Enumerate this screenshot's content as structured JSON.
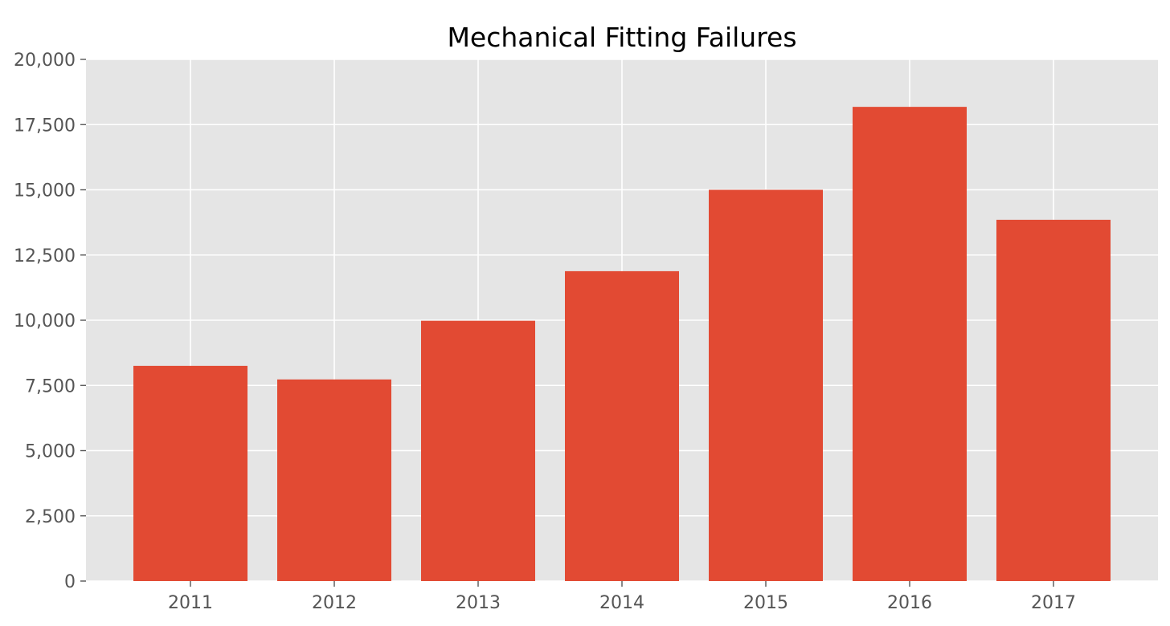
{
  "chart_data": {
    "type": "bar",
    "title": "Mechanical Fitting Failures",
    "xlabel": "",
    "ylabel": "",
    "categories": [
      "2011",
      "2012",
      "2013",
      "2014",
      "2015",
      "2016",
      "2017"
    ],
    "values": [
      8250,
      7730,
      9980,
      11880,
      15000,
      18180,
      13850
    ],
    "ylim": [
      0,
      20000
    ],
    "yticks": [
      0,
      2500,
      5000,
      7500,
      10000,
      12500,
      15000,
      17500,
      20000
    ],
    "ytick_labels": [
      "0",
      "2,500",
      "5,000",
      "7,500",
      "10,000",
      "12,500",
      "15,000",
      "17,500",
      "20,000"
    ],
    "grid": true,
    "legend": "none",
    "colors": {
      "bar": "#E24A33",
      "plot_background": "#E5E5E5",
      "grid": "#FFFFFF",
      "tick_label": "#555555",
      "title": "#000000"
    }
  }
}
